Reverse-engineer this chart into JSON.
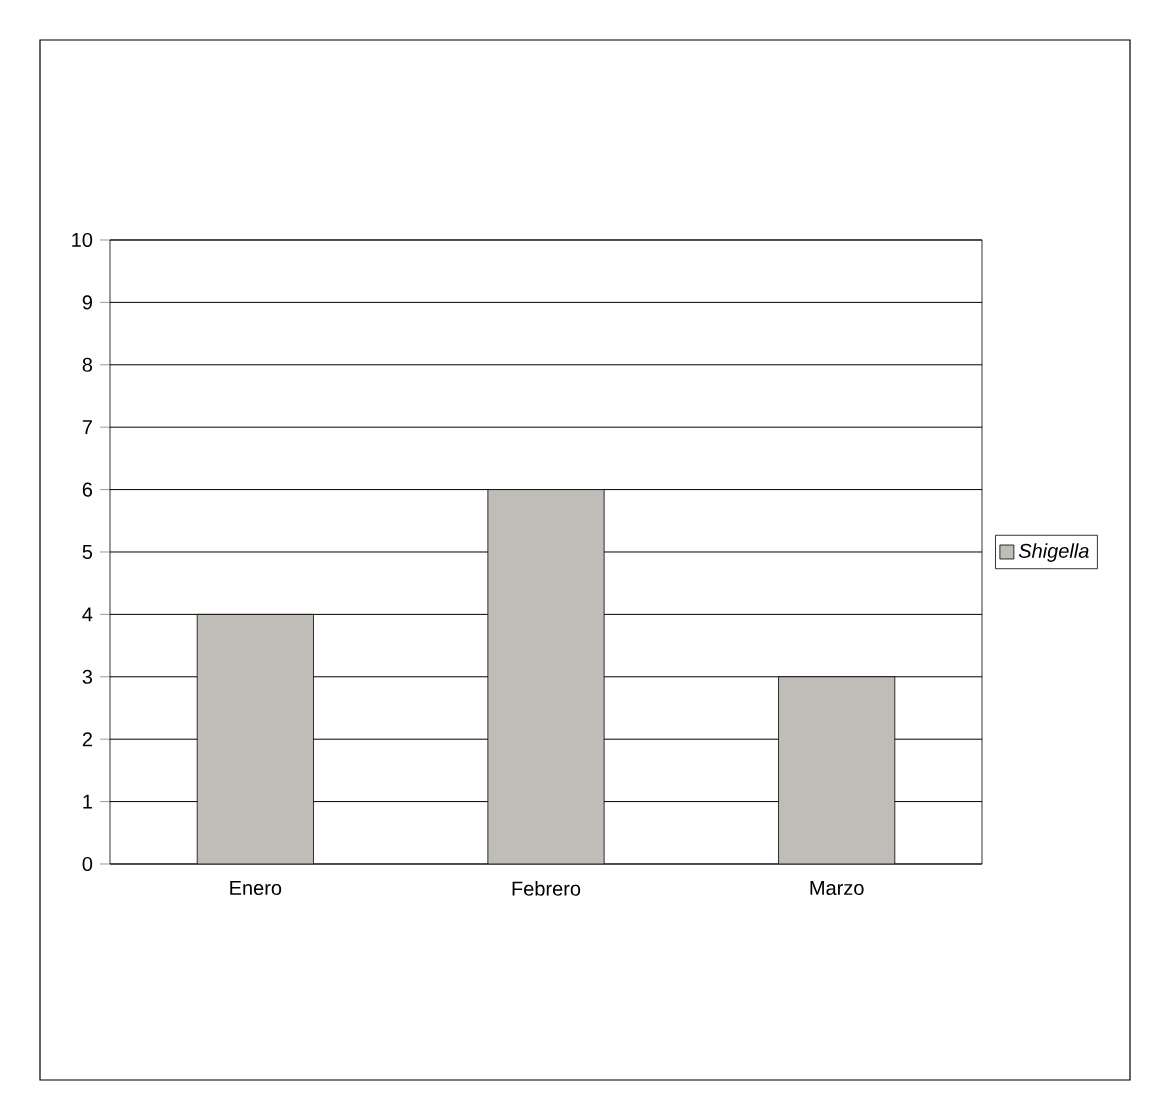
{
  "chart_data": {
    "type": "bar",
    "categories": [
      "Enero",
      "Febrero",
      "Marzo"
    ],
    "series": [
      {
        "name": "Shigella",
        "color": "#c0bdb8",
        "values": [
          4,
          6,
          3
        ]
      }
    ],
    "ylim": [
      0,
      10
    ],
    "yticks": [
      0,
      1,
      2,
      3,
      4,
      5,
      6,
      7,
      8,
      9,
      10
    ],
    "grid": "y",
    "legend": "right"
  }
}
